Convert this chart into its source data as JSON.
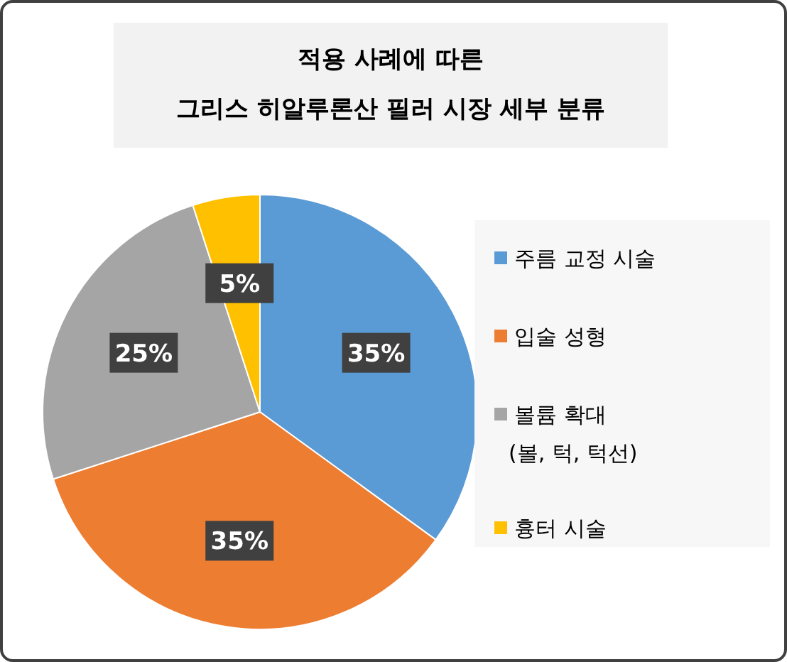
{
  "chart_data": {
    "type": "pie",
    "title": "적용 사례에 따른\n그리스 히알루론산 필러 시장 세부 분류",
    "categories": [
      "주름 교정 시술",
      "입술 성형",
      "볼륨 확대\n(볼, 턱, 턱선)",
      "흉터 시술"
    ],
    "values": [
      35,
      35,
      25,
      5
    ],
    "colors": [
      "#5b9bd5",
      "#ed7d31",
      "#a5a5a5",
      "#ffc000"
    ],
    "value_labels": [
      "35%",
      "35%",
      "25%",
      "5%"
    ],
    "legend": "right"
  }
}
